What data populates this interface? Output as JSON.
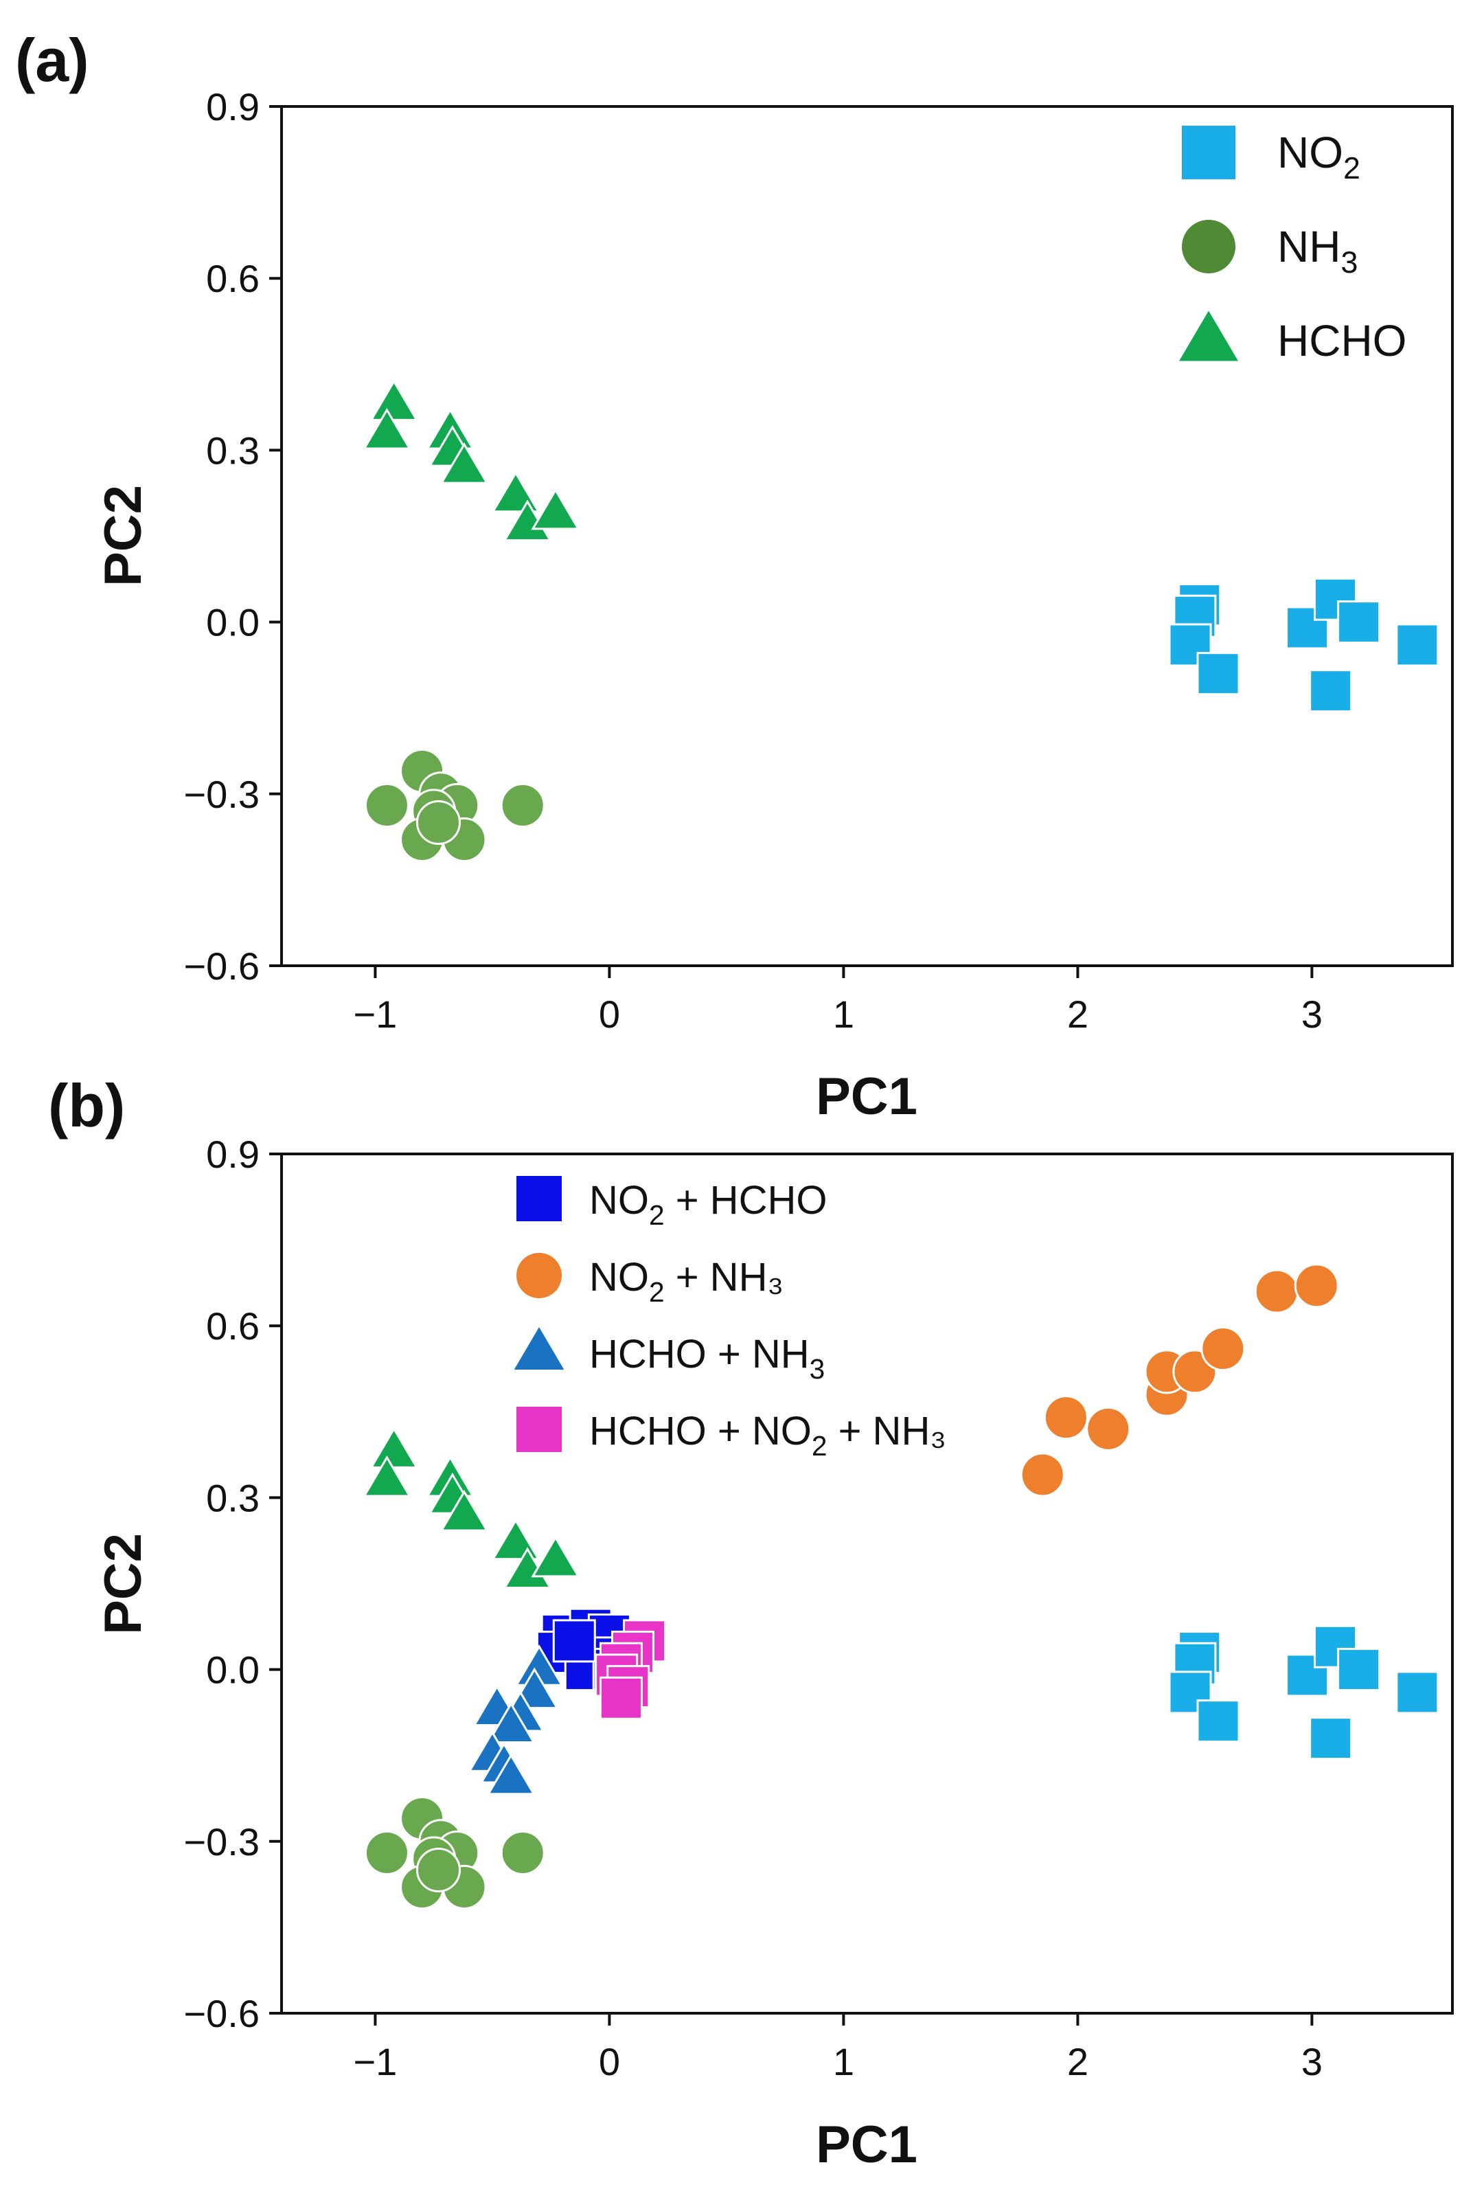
{
  "chart_data": [
    {
      "panel_label": "(a)",
      "type": "scatter",
      "xlabel": "PC1",
      "ylabel": "PC2",
      "xlim": [
        -1.4,
        3.6
      ],
      "ylim": [
        -0.6,
        0.9
      ],
      "xticks": [
        -1,
        0,
        1,
        2,
        3
      ],
      "yticks": [
        0.9,
        0.6,
        0.3,
        0.0,
        -0.3,
        -0.6
      ],
      "xtick_labels": [
        "−1",
        "0",
        "1",
        "2",
        "3"
      ],
      "ytick_labels": [
        "0.9",
        "0.6",
        "0.3",
        "0.0",
        "−0.3",
        "−0.6"
      ],
      "legend_placement": "top-right",
      "series": [
        {
          "name": "NO2",
          "label_main": "NO",
          "label_sub": "2",
          "label_tail": "",
          "marker": "square",
          "color": "#1aaee8",
          "points": [
            [
              2.52,
              0.03
            ],
            [
              2.5,
              0.01
            ],
            [
              2.48,
              -0.04
            ],
            [
              2.6,
              -0.09
            ],
            [
              2.98,
              -0.01
            ],
            [
              3.1,
              0.04
            ],
            [
              3.2,
              0.0
            ],
            [
              3.08,
              -0.12
            ],
            [
              3.45,
              -0.04
            ]
          ]
        },
        {
          "name": "NH3",
          "label_main": "NH",
          "label_sub": "3",
          "label_tail": "",
          "marker": "circle",
          "color": "#6aa84f",
          "legend_color": "#4f8a34",
          "points": [
            [
              -0.95,
              -0.32
            ],
            [
              -0.8,
              -0.26
            ],
            [
              -0.72,
              -0.3
            ],
            [
              -0.65,
              -0.32
            ],
            [
              -0.75,
              -0.33
            ],
            [
              -0.8,
              -0.38
            ],
            [
              -0.62,
              -0.38
            ],
            [
              -0.73,
              -0.35
            ],
            [
              -0.37,
              -0.32
            ]
          ]
        },
        {
          "name": "HCHO",
          "label_main": "HCHO",
          "label_sub": "",
          "label_tail": "",
          "marker": "triangle",
          "color": "#12a850",
          "points": [
            [
              -0.92,
              0.38
            ],
            [
              -0.95,
              0.33
            ],
            [
              -0.68,
              0.33
            ],
            [
              -0.67,
              0.3
            ],
            [
              -0.62,
              0.27
            ],
            [
              -0.4,
              0.22
            ],
            [
              -0.35,
              0.17
            ],
            [
              -0.23,
              0.19
            ]
          ]
        }
      ]
    },
    {
      "panel_label": "(b)",
      "type": "scatter",
      "xlabel": "PC1",
      "ylabel": "PC2",
      "xlim": [
        -1.4,
        3.6
      ],
      "ylim": [
        -0.6,
        0.9
      ],
      "xticks": [
        -1,
        0,
        1,
        2,
        3
      ],
      "yticks": [
        0.9,
        0.6,
        0.3,
        0.0,
        -0.3,
        -0.6
      ],
      "xtick_labels": [
        "−1",
        "0",
        "1",
        "2",
        "3"
      ],
      "ytick_labels": [
        "0.9",
        "0.6",
        "0.3",
        "0.0",
        "−0.3",
        "−0.6"
      ],
      "legend_placement": "top-left",
      "series": [
        {
          "name": "NO2",
          "legend": false,
          "marker": "square",
          "color": "#1aaee8",
          "points": [
            [
              2.52,
              0.03
            ],
            [
              2.5,
              0.01
            ],
            [
              2.48,
              -0.04
            ],
            [
              2.6,
              -0.09
            ],
            [
              2.98,
              -0.01
            ],
            [
              3.1,
              0.04
            ],
            [
              3.2,
              0.0
            ],
            [
              3.08,
              -0.12
            ],
            [
              3.45,
              -0.04
            ]
          ]
        },
        {
          "name": "NH3",
          "legend": false,
          "marker": "circle",
          "color": "#6aa84f",
          "points": [
            [
              -0.95,
              -0.32
            ],
            [
              -0.8,
              -0.26
            ],
            [
              -0.72,
              -0.3
            ],
            [
              -0.65,
              -0.32
            ],
            [
              -0.75,
              -0.33
            ],
            [
              -0.8,
              -0.38
            ],
            [
              -0.62,
              -0.38
            ],
            [
              -0.73,
              -0.35
            ],
            [
              -0.37,
              -0.32
            ]
          ]
        },
        {
          "name": "HCHO",
          "legend": false,
          "marker": "triangle",
          "color": "#12a850",
          "points": [
            [
              -0.92,
              0.38
            ],
            [
              -0.95,
              0.33
            ],
            [
              -0.68,
              0.33
            ],
            [
              -0.67,
              0.3
            ],
            [
              -0.62,
              0.27
            ],
            [
              -0.4,
              0.22
            ],
            [
              -0.35,
              0.17
            ],
            [
              -0.23,
              0.19
            ]
          ]
        },
        {
          "name": "NO2 + HCHO",
          "label_main": "NO",
          "label_sub": "2",
          "label_tail": " + HCHO",
          "marker": "square",
          "color": "#0a10e8",
          "points": [
            [
              -0.2,
              0.06
            ],
            [
              -0.08,
              0.07
            ],
            [
              -0.12,
              0.04
            ],
            [
              -0.22,
              0.03
            ],
            [
              0.0,
              0.06
            ],
            [
              -0.05,
              0.02
            ],
            [
              -0.1,
              0.0
            ],
            [
              0.02,
              0.0
            ],
            [
              -0.15,
              0.05
            ]
          ]
        },
        {
          "name": "NO2 + NH3",
          "label_main": "NO",
          "label_sub": "2",
          "label_tail": " + NH₃",
          "marker": "circle",
          "color": "#ee7f2d",
          "points": [
            [
              1.85,
              0.34
            ],
            [
              1.95,
              0.44
            ],
            [
              2.13,
              0.42
            ],
            [
              2.38,
              0.48
            ],
            [
              2.38,
              0.52
            ],
            [
              2.5,
              0.52
            ],
            [
              2.62,
              0.56
            ],
            [
              2.85,
              0.66
            ],
            [
              3.02,
              0.67
            ]
          ]
        },
        {
          "name": "HCHO + NH3",
          "label_main": "HCHO + NH",
          "label_sub": "3",
          "label_tail": "",
          "marker": "triangle",
          "color": "#1a73c2",
          "points": [
            [
              -0.3,
              0.0
            ],
            [
              -0.32,
              -0.04
            ],
            [
              -0.48,
              -0.07
            ],
            [
              -0.38,
              -0.08
            ],
            [
              -0.42,
              -0.1
            ],
            [
              -0.5,
              -0.15
            ],
            [
              -0.45,
              -0.17
            ],
            [
              -0.42,
              -0.19
            ]
          ]
        },
        {
          "name": "HCHO + NO2 + NH3",
          "label_main": "HCHO + NO",
          "label_sub": "2",
          "label_tail": " + NH₃",
          "marker": "square",
          "color": "#e835c8",
          "points": [
            [
              0.15,
              0.05
            ],
            [
              0.1,
              0.03
            ],
            [
              0.05,
              0.01
            ],
            [
              0.03,
              -0.01
            ],
            [
              0.08,
              -0.03
            ],
            [
              0.05,
              -0.05
            ]
          ]
        }
      ]
    }
  ]
}
